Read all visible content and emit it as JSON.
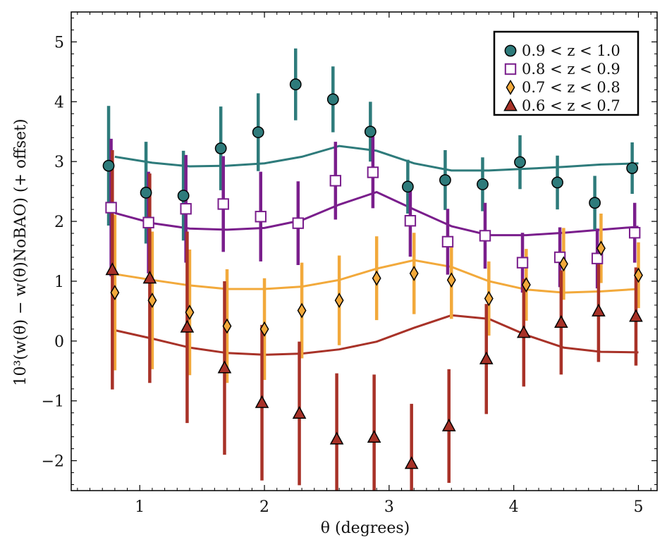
{
  "chart_data": {
    "type": "scatter",
    "xlabel": "θ (degrees)",
    "ylabel": "10³(w(θ) − w(θ)NoBAO) (+ offset)",
    "xlim": [
      0.45,
      5.15
    ],
    "ylim": [
      -2.5,
      5.5
    ],
    "xticks": [
      1,
      2,
      3,
      4,
      5
    ],
    "yticks": [
      -2,
      -1,
      0,
      1,
      2,
      3,
      4,
      5
    ],
    "x_tick_labels": [
      "1",
      "2",
      "3",
      "4",
      "5"
    ],
    "y_tick_labels": [
      "−2",
      "−1",
      "0",
      "1",
      "2",
      "3",
      "4",
      "5"
    ],
    "legend_position": "top-right",
    "grid": false,
    "series": [
      {
        "name": "0.9 < z < 1.0",
        "marker": "circle",
        "color": "#2e7b7b",
        "x": [
          0.75,
          1.05,
          1.35,
          1.65,
          1.95,
          2.25,
          2.55,
          2.85,
          3.15,
          3.45,
          3.75,
          4.05,
          4.35,
          4.65,
          4.95
        ],
        "y": [
          2.93,
          2.48,
          2.43,
          3.22,
          3.49,
          4.29,
          4.04,
          3.5,
          2.58,
          2.69,
          2.62,
          2.99,
          2.65,
          2.31,
          2.89
        ],
        "yerr": [
          1.0,
          0.85,
          0.75,
          0.7,
          0.65,
          0.6,
          0.55,
          0.5,
          0.45,
          0.5,
          0.45,
          0.45,
          0.45,
          0.45,
          0.43
        ],
        "model_x": [
          0.8,
          1.1,
          1.4,
          1.7,
          2.0,
          2.3,
          2.6,
          2.9,
          3.2,
          3.5,
          3.8,
          4.1,
          4.4,
          4.7,
          5.0
        ],
        "model_y": [
          3.08,
          2.98,
          2.92,
          2.93,
          2.97,
          3.08,
          3.26,
          3.18,
          2.97,
          2.85,
          2.85,
          2.88,
          2.91,
          2.95,
          2.97
        ]
      },
      {
        "name": "0.8 < z < 0.9",
        "marker": "square",
        "color": "#7a1e8c",
        "x": [
          0.77,
          1.07,
          1.37,
          1.67,
          1.97,
          2.27,
          2.57,
          2.87,
          3.17,
          3.47,
          3.77,
          4.07,
          4.37,
          4.67,
          4.97
        ],
        "y": [
          2.23,
          1.98,
          2.21,
          2.29,
          2.08,
          1.97,
          2.68,
          2.82,
          2.01,
          1.66,
          1.76,
          1.31,
          1.4,
          1.38,
          1.81
        ],
        "yerr": [
          1.15,
          0.85,
          0.9,
          0.8,
          0.75,
          0.7,
          0.65,
          0.6,
          0.6,
          0.55,
          0.55,
          0.5,
          0.5,
          0.5,
          0.5
        ],
        "model_x": [
          0.8,
          1.1,
          1.4,
          1.7,
          2.0,
          2.3,
          2.6,
          2.9,
          3.2,
          3.5,
          3.8,
          4.1,
          4.4,
          4.7,
          5.0
        ],
        "model_y": [
          2.14,
          1.97,
          1.88,
          1.86,
          1.89,
          2.02,
          2.28,
          2.49,
          2.2,
          1.92,
          1.77,
          1.77,
          1.81,
          1.86,
          1.91
        ]
      },
      {
        "name": "0.7 < z < 0.8",
        "marker": "diamond",
        "color": "#f2a93b",
        "x": [
          0.8,
          1.1,
          1.4,
          1.7,
          2.0,
          2.3,
          2.6,
          2.9,
          3.2,
          3.5,
          3.8,
          4.1,
          4.4,
          4.7,
          5.0
        ],
        "y": [
          0.81,
          0.68,
          0.48,
          0.25,
          0.2,
          0.51,
          0.68,
          1.05,
          1.13,
          1.02,
          0.71,
          0.94,
          1.29,
          1.55,
          1.1
        ],
        "yerr": [
          1.3,
          1.15,
          1.05,
          0.95,
          0.85,
          0.8,
          0.75,
          0.7,
          0.68,
          0.65,
          0.62,
          0.6,
          0.6,
          0.58,
          0.55
        ],
        "model_x": [
          0.8,
          1.1,
          1.4,
          1.7,
          2.0,
          2.3,
          2.6,
          2.9,
          3.2,
          3.5,
          3.8,
          4.1,
          4.4,
          4.7,
          5.0
        ],
        "model_y": [
          1.12,
          1.02,
          0.93,
          0.87,
          0.87,
          0.91,
          1.02,
          1.21,
          1.35,
          1.24,
          1.0,
          0.86,
          0.81,
          0.83,
          0.87
        ]
      },
      {
        "name": "0.6 < z < 0.7",
        "marker": "triangle",
        "color": "#a83228",
        "x": [
          0.78,
          1.08,
          1.38,
          1.68,
          1.98,
          2.28,
          2.58,
          2.88,
          3.18,
          3.48,
          3.78,
          4.08,
          4.38,
          4.68,
          4.98
        ],
        "y": [
          1.19,
          1.05,
          0.23,
          -0.45,
          -1.03,
          -1.21,
          -1.64,
          -1.61,
          -2.05,
          -1.42,
          -0.3,
          0.14,
          0.31,
          0.5,
          0.41
        ],
        "yerr": [
          2.0,
          1.75,
          1.6,
          1.45,
          1.3,
          1.2,
          1.1,
          1.05,
          1.0,
          0.95,
          0.92,
          0.9,
          0.87,
          0.85,
          0.82
        ],
        "model_x": [
          0.8,
          1.1,
          1.4,
          1.7,
          2.0,
          2.3,
          2.6,
          2.9,
          3.2,
          3.5,
          3.8,
          4.1,
          4.4,
          4.7,
          5.0
        ],
        "model_y": [
          0.18,
          0.04,
          -0.11,
          -0.2,
          -0.23,
          -0.21,
          -0.14,
          -0.01,
          0.22,
          0.43,
          0.37,
          0.1,
          -0.11,
          -0.18,
          -0.19
        ]
      }
    ]
  }
}
